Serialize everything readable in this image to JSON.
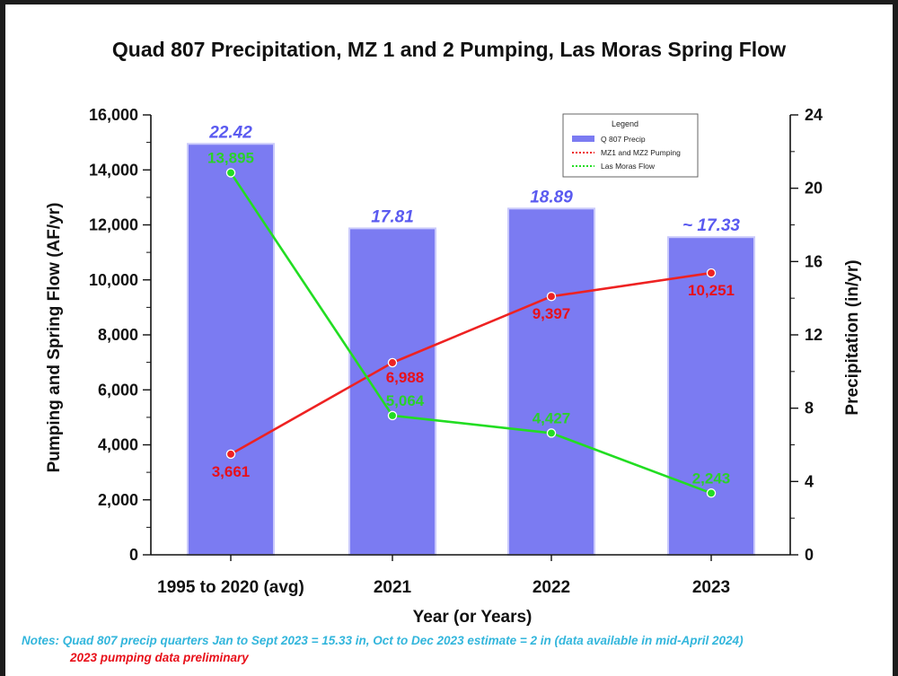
{
  "chart_data": {
    "type": "bar",
    "title": "Quad 807 Precipitation, MZ 1 and 2 Pumping, Las Moras Spring Flow",
    "xlabel": "Year (or Years)",
    "ylabel": "Pumping and Spring Flow (AF/yr)",
    "y2label": "Precipitation (in/yr)",
    "categories": [
      "1995 to 2020 (avg)",
      "2021",
      "2022",
      "2023"
    ],
    "ylim": [
      0,
      16000
    ],
    "y2lim": [
      0,
      24
    ],
    "yticks": [
      0,
      2000,
      4000,
      6000,
      8000,
      10000,
      12000,
      14000,
      16000
    ],
    "yticklabels": [
      "0",
      "2,000",
      "4,000",
      "6,000",
      "8,000",
      "10,000",
      "12,000",
      "14,000",
      "16,000"
    ],
    "y2ticks": [
      0,
      4,
      8,
      12,
      16,
      20,
      24
    ],
    "y2ticklabels": [
      "0",
      "4",
      "8",
      "12",
      "16",
      "20",
      "24"
    ],
    "grid": false,
    "legend_position": "top-right",
    "legend_title": "Legend",
    "series": [
      {
        "name": "Q 807 Precip",
        "kind": "bar",
        "axis": "right",
        "color": "#7b7bf2",
        "label_color": "#5a5af0",
        "values": [
          22.42,
          17.81,
          18.89,
          17.33
        ],
        "labels": [
          "22.42",
          "17.81",
          "18.89",
          "~ 17.33"
        ]
      },
      {
        "name": "MZ1 and MZ2 Pumping",
        "kind": "line",
        "axis": "left",
        "color": "#ee2222",
        "values": [
          3661,
          6988,
          9397,
          10251
        ],
        "labels": [
          "3,661",
          "6,988",
          "9,397",
          "10,251"
        ]
      },
      {
        "name": "Las Moras Flow",
        "kind": "line",
        "axis": "left",
        "color": "#22dd22",
        "values": [
          13895,
          5064,
          4427,
          2243
        ],
        "labels": [
          "13,895",
          "5,064",
          "4,427",
          "2,243"
        ]
      }
    ]
  },
  "notes": {
    "line1": "Notes: Quad 807 precip quarters Jan to Sept 2023 = 15.33 in, Oct to Dec 2023 estimate = 2 in (data available in mid-April 2024)",
    "line2": "2023 pumping data preliminary"
  }
}
